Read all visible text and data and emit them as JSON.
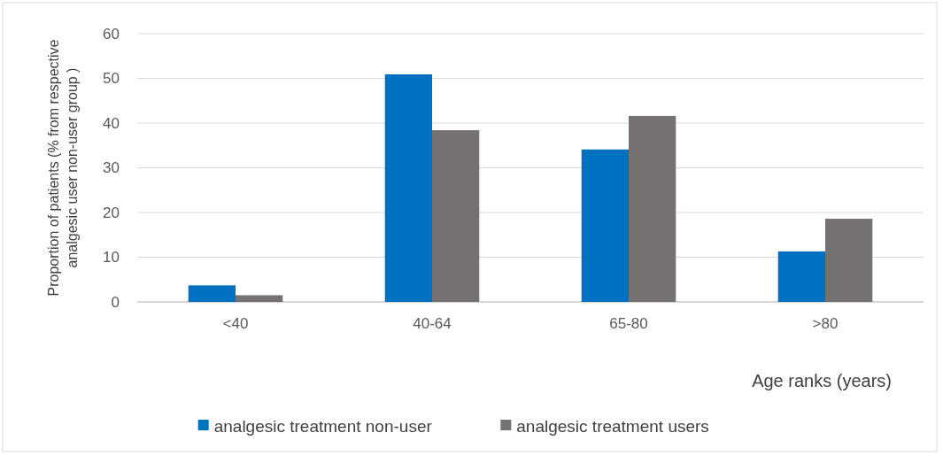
{
  "chart_data": {
    "type": "bar",
    "xlabel": "Age ranks (years)",
    "ylabel": "Proportion of patients (% from respective\nanalgesic user non-user group )",
    "categories": [
      "<40",
      "40-64",
      "65-80",
      ">80"
    ],
    "series": [
      {
        "name": "analgesic treatment non-user",
        "color": "#0070c0",
        "values": [
          3.7,
          50.9,
          34.1,
          11.3
        ]
      },
      {
        "name": "analgesic treatment users",
        "color": "#767171",
        "values": [
          1.5,
          38.4,
          41.6,
          18.6
        ]
      }
    ],
    "ylim": [
      0,
      60
    ],
    "yticks": [
      0,
      10,
      20,
      30,
      40,
      50,
      60
    ],
    "grid": "y",
    "legend": "bottom"
  }
}
